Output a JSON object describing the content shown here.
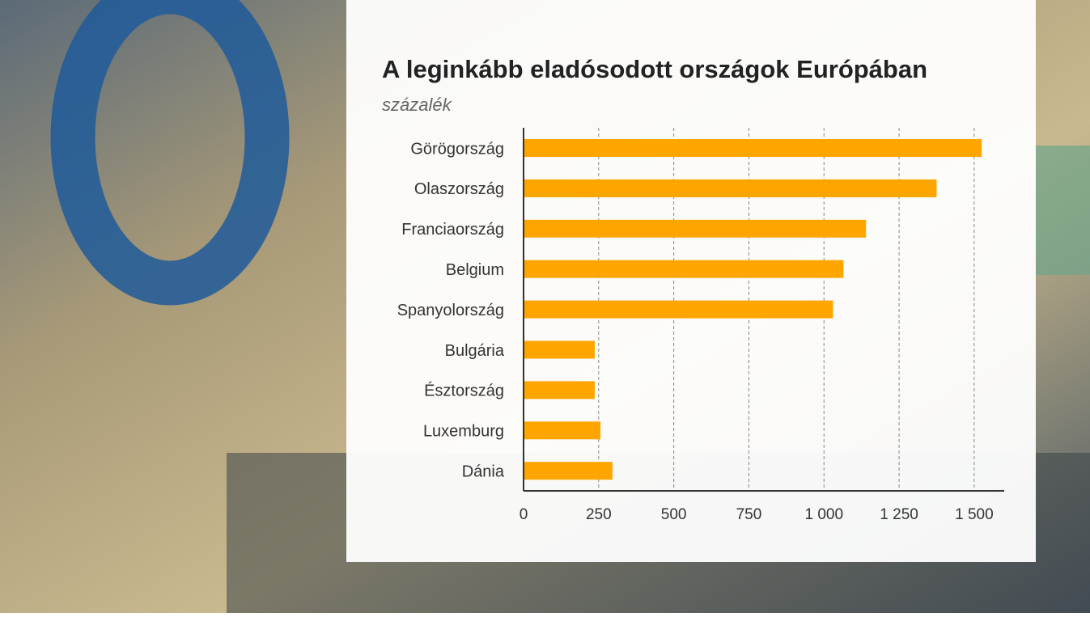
{
  "chart_data": {
    "type": "bar",
    "orientation": "horizontal",
    "title": "A leginkább eladósodott országok Európában",
    "subtitle": "százalék",
    "categories": [
      "Görögország",
      "Olaszország",
      "Franciaország",
      "Belgium",
      "Spanyolország",
      "Bulgária",
      "Észtország",
      "Luxemburg",
      "Dánia"
    ],
    "values": [
      1525,
      1375,
      1140,
      1065,
      1030,
      237,
      237,
      256,
      296
    ],
    "color": "#ffa500",
    "xlim": [
      0,
      1600
    ],
    "xticks": [
      0,
      250,
      500,
      750,
      {
        "value": 1000,
        "label": "1 000"
      },
      {
        "value": 1250,
        "label": "1 250"
      },
      {
        "value": 1500,
        "label": "1 500"
      }
    ],
    "grid": true
  }
}
